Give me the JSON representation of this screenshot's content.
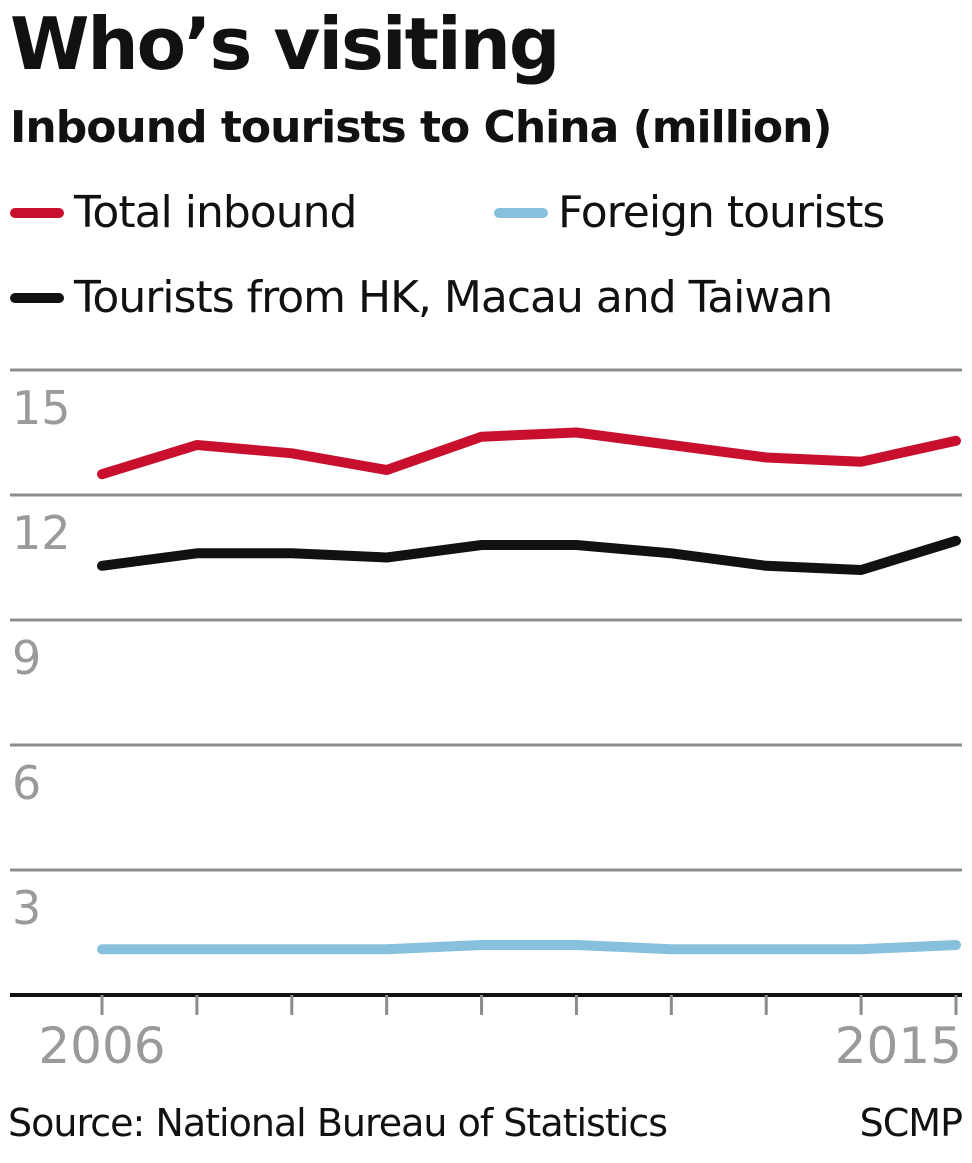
{
  "chart_data": {
    "type": "line",
    "title": "Who’s visiting",
    "subtitle": "Inbound tourists to China (million)",
    "x": [
      2006,
      2007,
      2008,
      2009,
      2010,
      2011,
      2012,
      2013,
      2014,
      2015
    ],
    "x_tick_labels": [
      "2006",
      "2015"
    ],
    "ylim": [
      0,
      15
    ],
    "y_ticks": [
      15,
      12,
      9,
      6,
      3
    ],
    "y_tick_labels": [
      "15",
      "12",
      "9",
      "6",
      "3"
    ],
    "grid": true,
    "legend_position": "top",
    "series": [
      {
        "name": "Total inbound",
        "color": "#c8102e",
        "values": [
          12.5,
          13.2,
          13.0,
          12.6,
          13.4,
          13.5,
          13.2,
          12.9,
          12.8,
          13.3
        ]
      },
      {
        "name": "Foreign tourists",
        "color": "#86c0dc",
        "values": [
          1.1,
          1.1,
          1.1,
          1.1,
          1.2,
          1.2,
          1.1,
          1.1,
          1.1,
          1.2
        ]
      },
      {
        "name": "Tourists from HK, Macau and Taiwan",
        "color": "#111111",
        "values": [
          10.3,
          10.6,
          10.6,
          10.5,
          10.8,
          10.8,
          10.6,
          10.3,
          10.2,
          10.9
        ]
      }
    ]
  },
  "source": "Source: National Bureau of Statistics",
  "credit": "SCMP"
}
